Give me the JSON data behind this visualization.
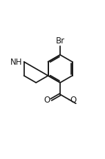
{
  "background_color": "#ffffff",
  "line_color": "#1a1a1a",
  "line_width": 1.3,
  "font_size": 8.5,
  "figsize": [
    1.52,
    2.32
  ],
  "dpi": 100,
  "labels": {
    "Br": "Br",
    "NH": "NH",
    "O_carbonyl": "O",
    "O_ester": "O"
  }
}
